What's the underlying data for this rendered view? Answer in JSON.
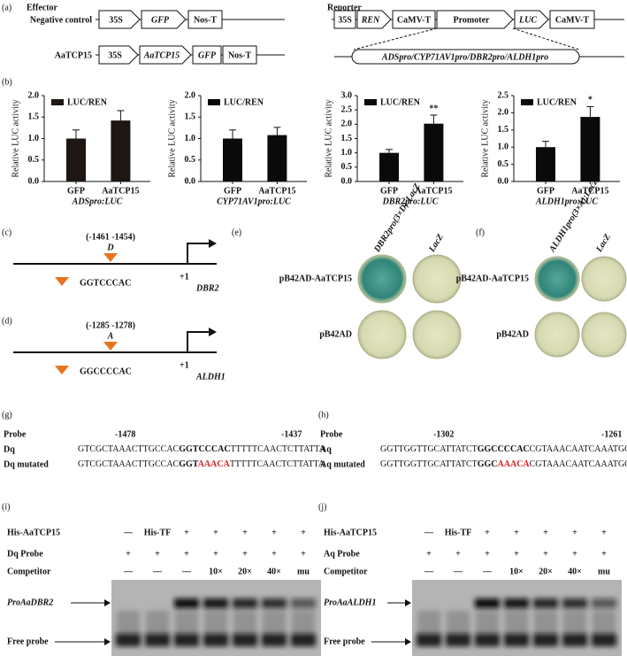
{
  "panel_a": {
    "label": "(a)",
    "effector": {
      "title": "Effector",
      "constructs": [
        {
          "name": "Negative control",
          "parts": [
            "35S",
            "GFP",
            "Nos-T"
          ]
        },
        {
          "name": "AaTCP15",
          "parts": [
            "35S",
            "AaTCP15",
            "GFP",
            "Nos-T"
          ]
        }
      ]
    },
    "reporter": {
      "title": "Reporter",
      "parts": [
        "35S",
        "REN",
        "CaMV-T",
        "Promoter",
        "LUC",
        "CaMV-T"
      ],
      "promoter_detail": "ADSpro/CYP71AV1pro/DBR2pro/ALDH1pro"
    }
  },
  "panel_b": {
    "label": "(b)"
  },
  "chart_data": [
    {
      "type": "bar",
      "ylabel": "Relative LUC activity",
      "legend": "LUC/REN",
      "categories": [
        "GFP",
        "AaTCP15"
      ],
      "xlabel": "ADSpro:LUC",
      "values": [
        1.0,
        1.42
      ],
      "errors": [
        0.2,
        0.23
      ],
      "color": "#1e1612",
      "ylim": [
        0,
        2
      ],
      "yticks": [
        {
          "value": 0,
          "label": "0.0"
        },
        0.5,
        {
          "value": 1,
          "label": "1.0"
        },
        1.5,
        {
          "value": 2,
          "label": "2.0"
        }
      ]
    },
    {
      "type": "bar",
      "ylabel": "Relative LUC activity",
      "legend": "LUC/REN",
      "categories": [
        "GFP",
        "AaTCP15"
      ],
      "xlabel": "CYP71AV1pro:LUC",
      "values": [
        1.0,
        1.08
      ],
      "errors": [
        0.2,
        0.18
      ],
      "color": "#0a0a0a",
      "ylim": [
        0,
        2
      ],
      "yticks": [
        {
          "value": 0,
          "label": "0.0"
        },
        0.5,
        {
          "value": 1,
          "label": "1.0"
        },
        1.5,
        {
          "value": 2,
          "label": "2.0"
        }
      ]
    },
    {
      "type": "bar",
      "ylabel": "Relative LUC activity",
      "legend": "LUC/REN",
      "categories": [
        "GFP",
        "AaTCP15"
      ],
      "xlabel": "DBR2pro:LUC",
      "values": [
        1.0,
        2.02
      ],
      "errors": [
        0.12,
        0.3
      ],
      "color": "#0a0a0a",
      "ylim": [
        0,
        3
      ],
      "annotation": "**",
      "yticks": [
        {
          "value": 0,
          "label": "0.0"
        },
        0.5,
        {
          "value": 1,
          "label": "1.0"
        },
        1.5,
        {
          "value": 2,
          "label": "2.0"
        },
        2.5,
        {
          "value": 3,
          "label": "3.0"
        }
      ]
    },
    {
      "type": "bar",
      "ylabel": "Relative LUC activity",
      "legend": "LUC/REN",
      "categories": [
        "GFP",
        "AaTCP15"
      ],
      "xlabel": "ALDH1pro:LUC",
      "values": [
        1.0,
        1.88
      ],
      "errors": [
        0.17,
        0.3
      ],
      "color": "#0a0a0a",
      "ylim": [
        0,
        2.5
      ],
      "annotation": "*",
      "yticks": [
        {
          "value": 0,
          "label": "0.0"
        },
        0.5,
        {
          "value": 1,
          "label": "1.0"
        },
        1.5,
        {
          "value": 2,
          "label": "2.0"
        },
        2.5
      ]
    }
  ],
  "panel_c": {
    "label": "(c)",
    "position": "(-1461 -1454)",
    "element": "D",
    "sequence": "GGTCCCAC",
    "tss": "+1",
    "gene": "DBR2"
  },
  "panel_d": {
    "label": "(d)",
    "position": "(-1285 -1278)",
    "element": "A",
    "sequence": "GGCCCCAC",
    "tss": "+1",
    "gene": "ALDH1"
  },
  "panel_e": {
    "label": "(e)",
    "columns": [
      "DBR2pro(3×D):LacZ",
      "LacZ"
    ],
    "rows": [
      "pB42AD-AaTCP15",
      "pB42AD"
    ]
  },
  "panel_f": {
    "label": "(f)",
    "columns": [
      "ALDH1pro(3×A):LacZ",
      "LacZ"
    ],
    "rows": [
      "pB42AD-AaTCP15",
      "pB42AD"
    ]
  },
  "panel_g": {
    "label": "(g)",
    "probe_label": "Probe",
    "start": "-1478",
    "end": "-1437",
    "rows": [
      {
        "name": "Dq",
        "segments": [
          {
            "text": "GTCGCTAAACTTGCCAC",
            "style": "plain"
          },
          {
            "text": "GGTCCCAC",
            "style": "bold"
          },
          {
            "text": "TTTTTCAACTCTTATTA",
            "style": "plain"
          }
        ]
      },
      {
        "name": "Dq mutated",
        "segments": [
          {
            "text": "GTCGCTAAACTTGCCAC",
            "style": "plain"
          },
          {
            "text": "GGT",
            "style": "bold"
          },
          {
            "text": "AAACA",
            "style": "red"
          },
          {
            "text": "TTTTTCAACTCTTATTA",
            "style": "plain"
          }
        ]
      }
    ]
  },
  "panel_h": {
    "label": "(h)",
    "probe_label": "Probe",
    "start": "-1302",
    "end": "-1261",
    "rows": [
      {
        "name": "Aq",
        "segments": [
          {
            "text": "GGTTGGTTGCATTATCT",
            "style": "plain"
          },
          {
            "text": "GGCCCCAC",
            "style": "bold"
          },
          {
            "text": "CGTAAACAATCAAATGC",
            "style": "plain"
          }
        ]
      },
      {
        "name": "Aq mutated",
        "segments": [
          {
            "text": "GGTTGGTTGCATTATCT",
            "style": "plain"
          },
          {
            "text": "GGC",
            "style": "bold"
          },
          {
            "text": "AAACA",
            "style": "red"
          },
          {
            "text": "CGTAAACAATCAAATGC",
            "style": "plain"
          }
        ]
      }
    ]
  },
  "panel_i": {
    "label": "(i)",
    "rows": [
      {
        "name": "His-AaTCP15",
        "lanes": [
          "—",
          "His-TF",
          "+",
          "+",
          "+",
          "+",
          "+"
        ]
      },
      {
        "name": "Dq Probe",
        "lanes": [
          "+",
          "+",
          "+",
          "+",
          "+",
          "+",
          "+"
        ]
      },
      {
        "name": "Competitor",
        "lanes": [
          "—",
          "—",
          "—",
          "10×",
          "20×",
          "40×",
          "mu"
        ]
      }
    ],
    "bands": [
      "ProAaDBR2",
      "Free probe"
    ]
  },
  "panel_j": {
    "label": "(j)",
    "rows": [
      {
        "name": "His-AaTCP15",
        "lanes": [
          "—",
          "His-TF",
          "+",
          "+",
          "+",
          "+",
          "+"
        ]
      },
      {
        "name": "Aq Probe",
        "lanes": [
          "+",
          "+",
          "+",
          "+",
          "+",
          "+",
          "+"
        ]
      },
      {
        "name": "Competitor",
        "lanes": [
          "—",
          "—",
          "—",
          "10×",
          "20×",
          "40×",
          "mu"
        ]
      }
    ],
    "bands": [
      "ProAaALDH1",
      "Free probe"
    ]
  }
}
